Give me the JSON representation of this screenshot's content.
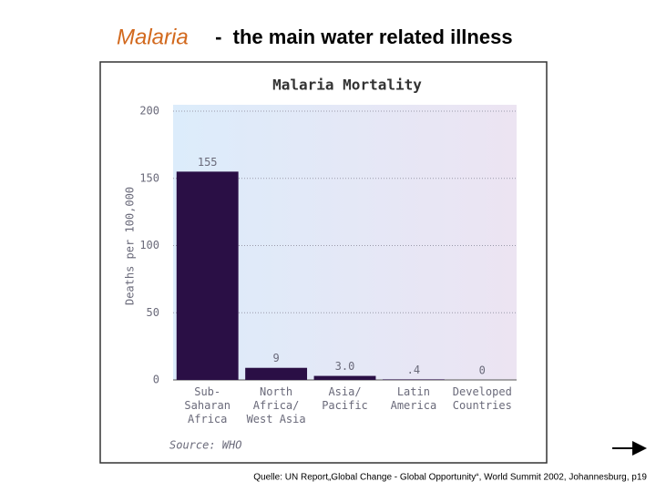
{
  "slide": {
    "title_highlight": "Malaria",
    "title_rest": " -  the main water related illness",
    "footer": "Quelle: UN Report„Global Change - Global Opportunity“, World Summit 2002, Johannesburg,  p19"
  },
  "chart_data": {
    "type": "bar",
    "title": "Malaria Mortality",
    "y_label": "Deaths per 100,000",
    "categories": [
      "Sub-\nSaharan\nAfrica",
      "North\nAfrica/\nWest Asia",
      "Asia/\nPacific",
      "Latin\nAmerica",
      "Developed\nCountries"
    ],
    "values": [
      155,
      9,
      3,
      0.4,
      0
    ],
    "value_labels": [
      "155",
      "9",
      "3.0",
      ".4",
      "0"
    ],
    "color": "#2a0f45",
    "ylim": [
      0,
      200
    ],
    "yticks": [
      0,
      50,
      100,
      150,
      200
    ],
    "grid": true,
    "source": "Source: WHO"
  }
}
